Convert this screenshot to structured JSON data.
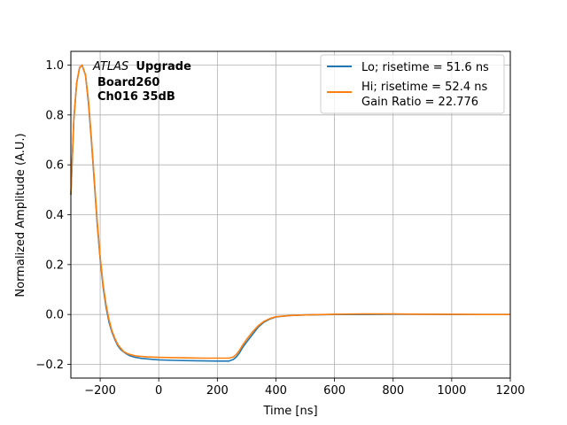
{
  "chart_data": {
    "type": "line",
    "xlabel": "Time [ns]",
    "ylabel": "Normalized Amplitude (A.U.)",
    "xlim": [
      -300,
      1200
    ],
    "ylim": [
      -0.255,
      1.055
    ],
    "xticks": [
      -200,
      0,
      200,
      400,
      600,
      800,
      1000,
      1200
    ],
    "yticks": [
      -0.2,
      0.0,
      0.2,
      0.4,
      0.6,
      0.8,
      1.0
    ],
    "xtick_labels": [
      "−200",
      "0",
      "200",
      "400",
      "600",
      "800",
      "1000",
      "1200"
    ],
    "ytick_labels": [
      "−0.2",
      "0.0",
      "0.2",
      "0.4",
      "0.6",
      "0.8",
      "1.0"
    ],
    "grid": true,
    "legend_position": "top-right",
    "annotation": {
      "line1_italic": "ATLAS",
      "line1_bold": "Upgrade",
      "line2": "Board260",
      "line3": "Ch016 35dB"
    },
    "series": [
      {
        "name": "Lo; risetime = 51.6 ns",
        "color": "#1f77b4",
        "x": [
          -300,
          -290,
          -280,
          -270,
          -262,
          -250,
          -240,
          -230,
          -220,
          -210,
          -200,
          -190,
          -180,
          -170,
          -160,
          -150,
          -140,
          -130,
          -120,
          -110,
          -100,
          -80,
          -60,
          -40,
          -20,
          0,
          50,
          100,
          150,
          200,
          240,
          255,
          265,
          275,
          285,
          300,
          320,
          340,
          360,
          380,
          400,
          450,
          500,
          600,
          700,
          800,
          900,
          1000,
          1100,
          1200
        ],
        "y": [
          0.48,
          0.78,
          0.93,
          0.99,
          1.0,
          0.96,
          0.85,
          0.7,
          0.53,
          0.36,
          0.22,
          0.11,
          0.03,
          -0.03,
          -0.07,
          -0.1,
          -0.125,
          -0.14,
          -0.15,
          -0.158,
          -0.165,
          -0.172,
          -0.176,
          -0.178,
          -0.18,
          -0.182,
          -0.184,
          -0.185,
          -0.186,
          -0.187,
          -0.187,
          -0.18,
          -0.17,
          -0.155,
          -0.135,
          -0.11,
          -0.08,
          -0.05,
          -0.03,
          -0.018,
          -0.01,
          -0.004,
          -0.002,
          0.0,
          0.0,
          0.001,
          0.001,
          0.0,
          0.0,
          0.0
        ]
      },
      {
        "name": "Hi; risetime = 52.4 ns",
        "name_line2": "Gain Ratio = 22.776",
        "color": "#ff7f0e",
        "x": [
          -300,
          -290,
          -280,
          -270,
          -262,
          -250,
          -240,
          -230,
          -220,
          -210,
          -200,
          -190,
          -180,
          -170,
          -160,
          -150,
          -140,
          -130,
          -120,
          -110,
          -100,
          -80,
          -60,
          -40,
          -20,
          0,
          50,
          100,
          150,
          200,
          240,
          255,
          265,
          275,
          285,
          300,
          320,
          340,
          360,
          380,
          400,
          450,
          500,
          600,
          700,
          800,
          900,
          1000,
          1100,
          1200
        ],
        "y": [
          0.48,
          0.78,
          0.93,
          0.99,
          1.0,
          0.96,
          0.86,
          0.71,
          0.54,
          0.37,
          0.23,
          0.12,
          0.04,
          -0.02,
          -0.065,
          -0.095,
          -0.12,
          -0.135,
          -0.148,
          -0.155,
          -0.16,
          -0.166,
          -0.168,
          -0.17,
          -0.171,
          -0.172,
          -0.173,
          -0.174,
          -0.175,
          -0.175,
          -0.175,
          -0.17,
          -0.16,
          -0.145,
          -0.125,
          -0.1,
          -0.07,
          -0.045,
          -0.027,
          -0.016,
          -0.009,
          -0.004,
          -0.002,
          0.001,
          0.002,
          0.002,
          0.001,
          0.001,
          0.0,
          0.0
        ]
      }
    ]
  }
}
